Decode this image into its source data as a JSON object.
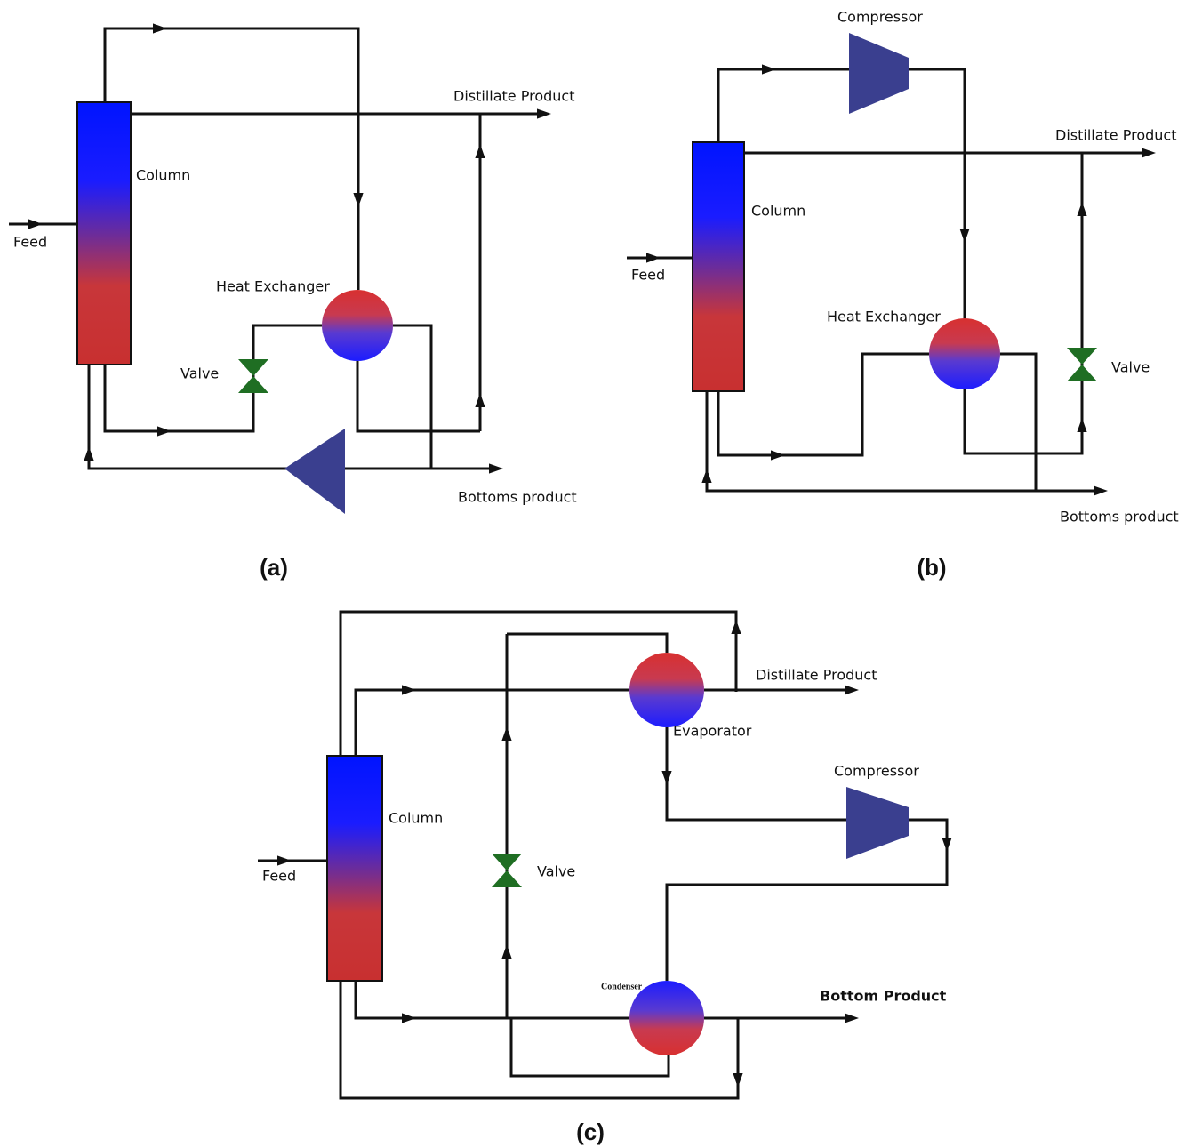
{
  "panels": [
    {
      "caption": "(a)",
      "labels": {
        "feed": "Feed",
        "column": "Column",
        "heat_exchanger": "Heat Exchanger",
        "valve": "Valve",
        "distillate": "Distillate Product",
        "bottoms": "Bottoms product"
      }
    },
    {
      "caption": "(b)",
      "labels": {
        "compressor": "Compressor",
        "feed": "Feed",
        "column": "Column",
        "heat_exchanger": "Heat Exchanger",
        "valve": "Valve",
        "distillate": "Distillate Product",
        "bottoms": "Bottoms product"
      }
    },
    {
      "caption": "(c)",
      "labels": {
        "feed": "Feed",
        "column": "Column",
        "evaporator": "Evaporator",
        "compressor": "Compressor",
        "valve": "Valve",
        "condenser": "Condenser",
        "distillate": "Distillate Product",
        "bottoms": "Bottom Product"
      }
    }
  ]
}
